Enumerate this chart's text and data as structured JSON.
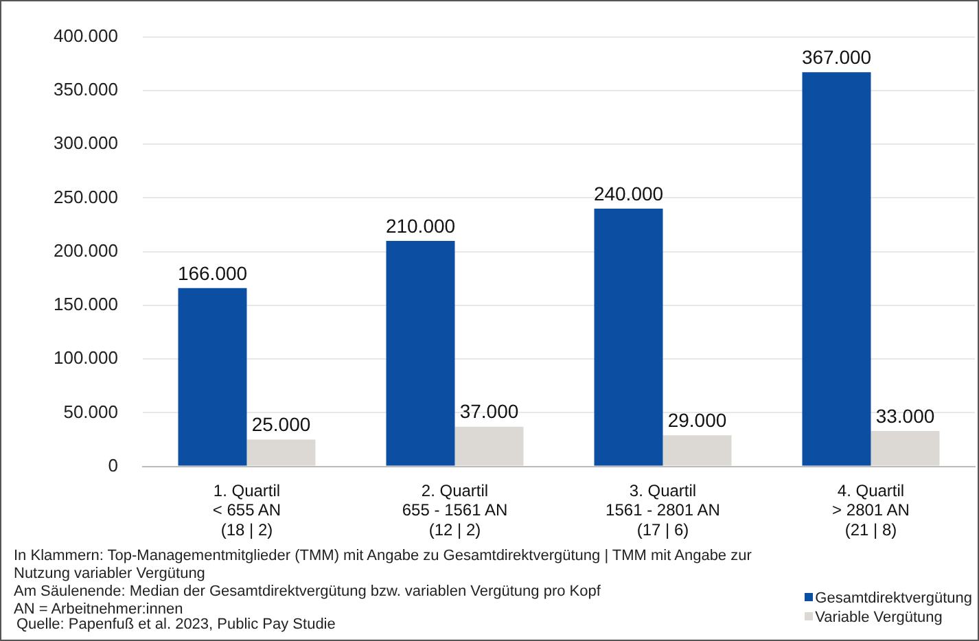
{
  "chart_data": {
    "type": "bar",
    "categories": [
      "1. Quartil\n< 655 AN\n(18 | 2)",
      "2. Quartil\n655 - 1561 AN\n(12 | 2)",
      "3. Quartil\n1561 - 2801 AN\n(17 | 6)",
      "4. Quartil\n> 2801 AN\n(21 | 8)"
    ],
    "series": [
      {
        "name": "Gesamtdirektvergütung",
        "color": "#0b4ea2",
        "values": [
          166000,
          210000,
          240000,
          367000
        ],
        "value_labels": [
          "166.000",
          "210.000",
          "240.000",
          "367.000"
        ]
      },
      {
        "name": "Variable Vergütung",
        "color": "#dcd9d4",
        "values": [
          25000,
          37000,
          29000,
          33000
        ],
        "value_labels": [
          "25.000",
          "37.000",
          "29.000",
          "33.000"
        ]
      }
    ],
    "ylim": [
      0,
      400000
    ],
    "yticks": [
      0,
      {
        "value": 50000,
        "label": "50.000"
      },
      {
        "value": 100000,
        "label": "100.000"
      },
      {
        "value": 150000,
        "label": "150.000"
      },
      {
        "value": 200000,
        "label": "200.000"
      },
      {
        "value": 250000,
        "label": "250.000"
      },
      {
        "value": 300000,
        "label": "300.000"
      },
      {
        "value": 350000,
        "label": "350.000"
      },
      {
        "value": 400000,
        "label": "400.000"
      }
    ],
    "grid": "y",
    "legend": "bottom right",
    "annotations": [
      "In Klammern: Top-Managementmitglieder (TMM) mit Angabe zu Gesamtdirektvergütung | TMM mit Angabe zur Nutzung variabler Vergütung",
      "Am Säulenende: Median der Gesamtdirektvergütung bzw. variablen Vergütung pro Kopf",
      "AN = Arbeitnehmer:innen",
      "Quelle: Papenfuß et al. 2023, Public Pay Studie"
    ]
  }
}
